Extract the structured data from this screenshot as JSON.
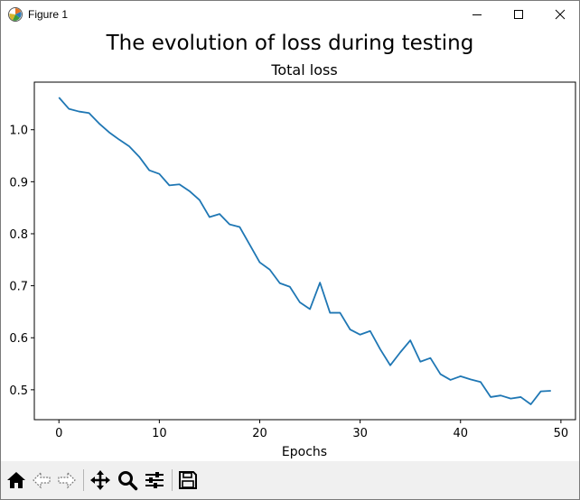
{
  "window": {
    "title": "Figure 1",
    "icons": {
      "app": "matplotlib-logo-icon",
      "minimize": "minimize-icon",
      "maximize": "maximize-icon",
      "close": "close-icon"
    }
  },
  "figure": {
    "suptitle": "The evolution of loss during testing"
  },
  "chart_data": {
    "type": "line",
    "title": "Total loss",
    "xlabel": "Epochs",
    "ylabel": "",
    "xlim": [
      -2.45,
      51.45
    ],
    "ylim": [
      0.4425,
      1.0915
    ],
    "xticks": [
      0,
      10,
      20,
      30,
      40,
      50
    ],
    "yticks": [
      0.5,
      0.6,
      0.7,
      0.8,
      0.9,
      1.0
    ],
    "xtick_labels": [
      "0",
      "10",
      "20",
      "30",
      "40",
      "50"
    ],
    "ytick_labels": [
      "0.5",
      "0.6",
      "0.7",
      "0.8",
      "0.9",
      "1.0"
    ],
    "grid": false,
    "line_color": "#1f77b4",
    "x": [
      0,
      1,
      2,
      3,
      4,
      5,
      6,
      7,
      8,
      9,
      10,
      11,
      12,
      13,
      14,
      15,
      16,
      17,
      18,
      19,
      20,
      21,
      22,
      23,
      24,
      25,
      26,
      27,
      28,
      29,
      30,
      31,
      32,
      33,
      34,
      35,
      36,
      37,
      38,
      39,
      40,
      41,
      42,
      43,
      44,
      45,
      46,
      47,
      48,
      49
    ],
    "y": [
      1.062,
      1.04,
      1.035,
      1.032,
      1.012,
      0.995,
      0.981,
      0.968,
      0.948,
      0.922,
      0.915,
      0.893,
      0.895,
      0.882,
      0.865,
      0.832,
      0.838,
      0.818,
      0.813,
      0.779,
      0.745,
      0.731,
      0.705,
      0.698,
      0.668,
      0.655,
      0.706,
      0.648,
      0.648,
      0.616,
      0.606,
      0.613,
      0.578,
      0.547,
      0.572,
      0.595,
      0.554,
      0.561,
      0.53,
      0.519,
      0.526,
      0.52,
      0.515,
      0.486,
      0.489,
      0.483,
      0.486,
      0.472,
      0.497,
      0.498
    ]
  },
  "toolbar": {
    "items": [
      {
        "name": "home-icon",
        "label": "Home"
      },
      {
        "name": "back-icon",
        "label": "Back"
      },
      {
        "name": "forward-icon",
        "label": "Forward"
      },
      {
        "name": "pan-icon",
        "label": "Pan"
      },
      {
        "name": "zoom-icon",
        "label": "Zoom"
      },
      {
        "name": "configure-subplots-icon",
        "label": "Configure subplots"
      },
      {
        "name": "save-icon",
        "label": "Save"
      }
    ]
  }
}
